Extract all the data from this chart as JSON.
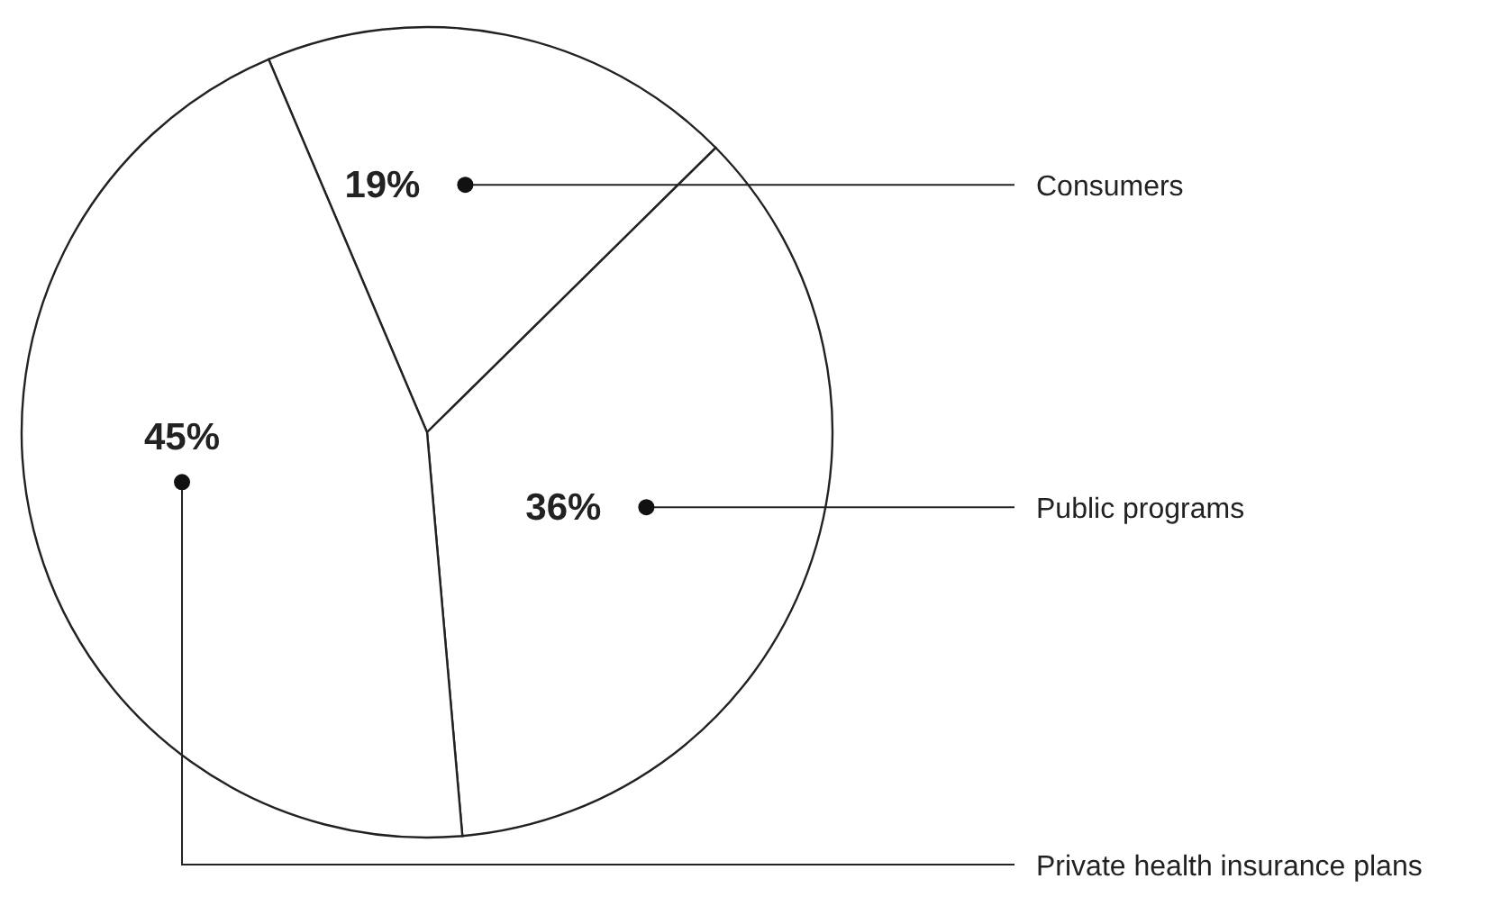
{
  "chart_data": {
    "type": "pie",
    "categories": [
      "Consumers",
      "Public programs",
      "Private health insurance plans"
    ],
    "values": [
      19,
      36,
      45
    ],
    "value_labels": [
      "19%",
      "36%",
      "45%"
    ],
    "colors": [
      "#ffffff",
      "#ffffff",
      "#ffffff"
    ],
    "legend": false
  }
}
